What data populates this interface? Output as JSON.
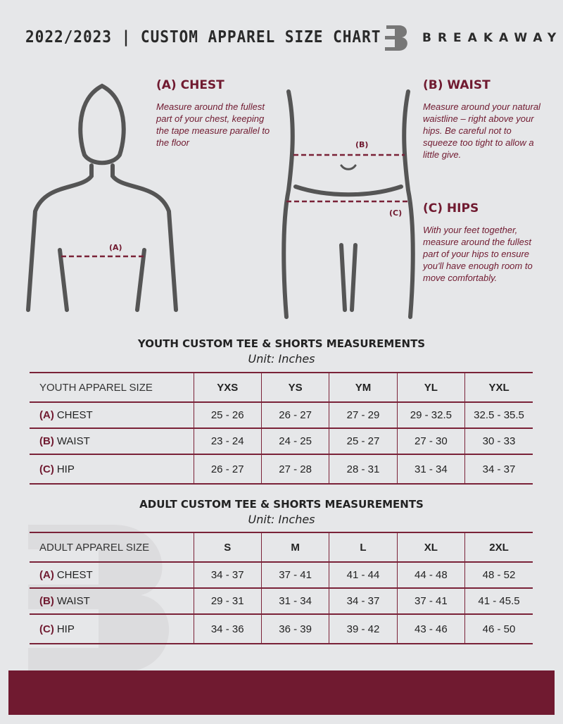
{
  "header": {
    "title": "2022/2023 | CUSTOM APPAREL SIZE CHART",
    "brand": "BREAKAWAY"
  },
  "guide": {
    "chest": {
      "heading": "(A) CHEST",
      "text": "Measure around the fullest part of your chest, keeping the tape measure parallel to the floor",
      "marker": "(A)"
    },
    "waist": {
      "heading": "(B) WAIST",
      "text": "Measure around your natural waistline – right above your hips. Be careful not to squeeze too tight to allow a little give.",
      "marker": "(B)"
    },
    "hips": {
      "heading": "(C) HIPS",
      "text": "With your feet together, measure around the fullest part of your hips to ensure you'll have enough room to move comfortably.",
      "marker": "(C)"
    }
  },
  "youth": {
    "title": "YOUTH CUSTOM TEE & SHORTS MEASUREMENTS",
    "unit": "Unit: Inches",
    "header": "YOUTH APPAREL SIZE",
    "sizes": [
      "YXS",
      "YS",
      "YM",
      "YL",
      "YXL"
    ],
    "rows": [
      {
        "letter": "(A)",
        "label": "CHEST",
        "values": [
          "25 - 26",
          "26 - 27",
          "27 - 29",
          "29 - 32.5",
          "32.5 - 35.5"
        ]
      },
      {
        "letter": "(B)",
        "label": "WAIST",
        "values": [
          "23 - 24",
          "24 - 25",
          "25 - 27",
          "27 - 30",
          "30 - 33"
        ]
      },
      {
        "letter": "(C)",
        "label": "HIP",
        "values": [
          "26 - 27",
          "27 - 28",
          "28 - 31",
          "31 - 34",
          "34 - 37"
        ]
      }
    ]
  },
  "adult": {
    "title": "ADULT CUSTOM TEE & SHORTS MEASUREMENTS",
    "unit": "Unit: Inches",
    "header": "ADULT APPAREL SIZE",
    "sizes": [
      "S",
      "M",
      "L",
      "XL",
      "2XL"
    ],
    "rows": [
      {
        "letter": "(A)",
        "label": "CHEST",
        "values": [
          "34 - 37",
          "37 - 41",
          "41 - 44",
          "44 - 48",
          "48 - 52"
        ]
      },
      {
        "letter": "(B)",
        "label": "WAIST",
        "values": [
          "29 - 31",
          "31 - 34",
          "34 - 37",
          "37 - 41",
          "41 - 45.5"
        ]
      },
      {
        "letter": "(C)",
        "label": "HIP",
        "values": [
          "34 - 36",
          "36 - 39",
          "39 - 42",
          "43 - 46",
          "46 - 50"
        ]
      }
    ]
  },
  "colors": {
    "accent": "#701a30",
    "background": "#e6e7e9"
  }
}
